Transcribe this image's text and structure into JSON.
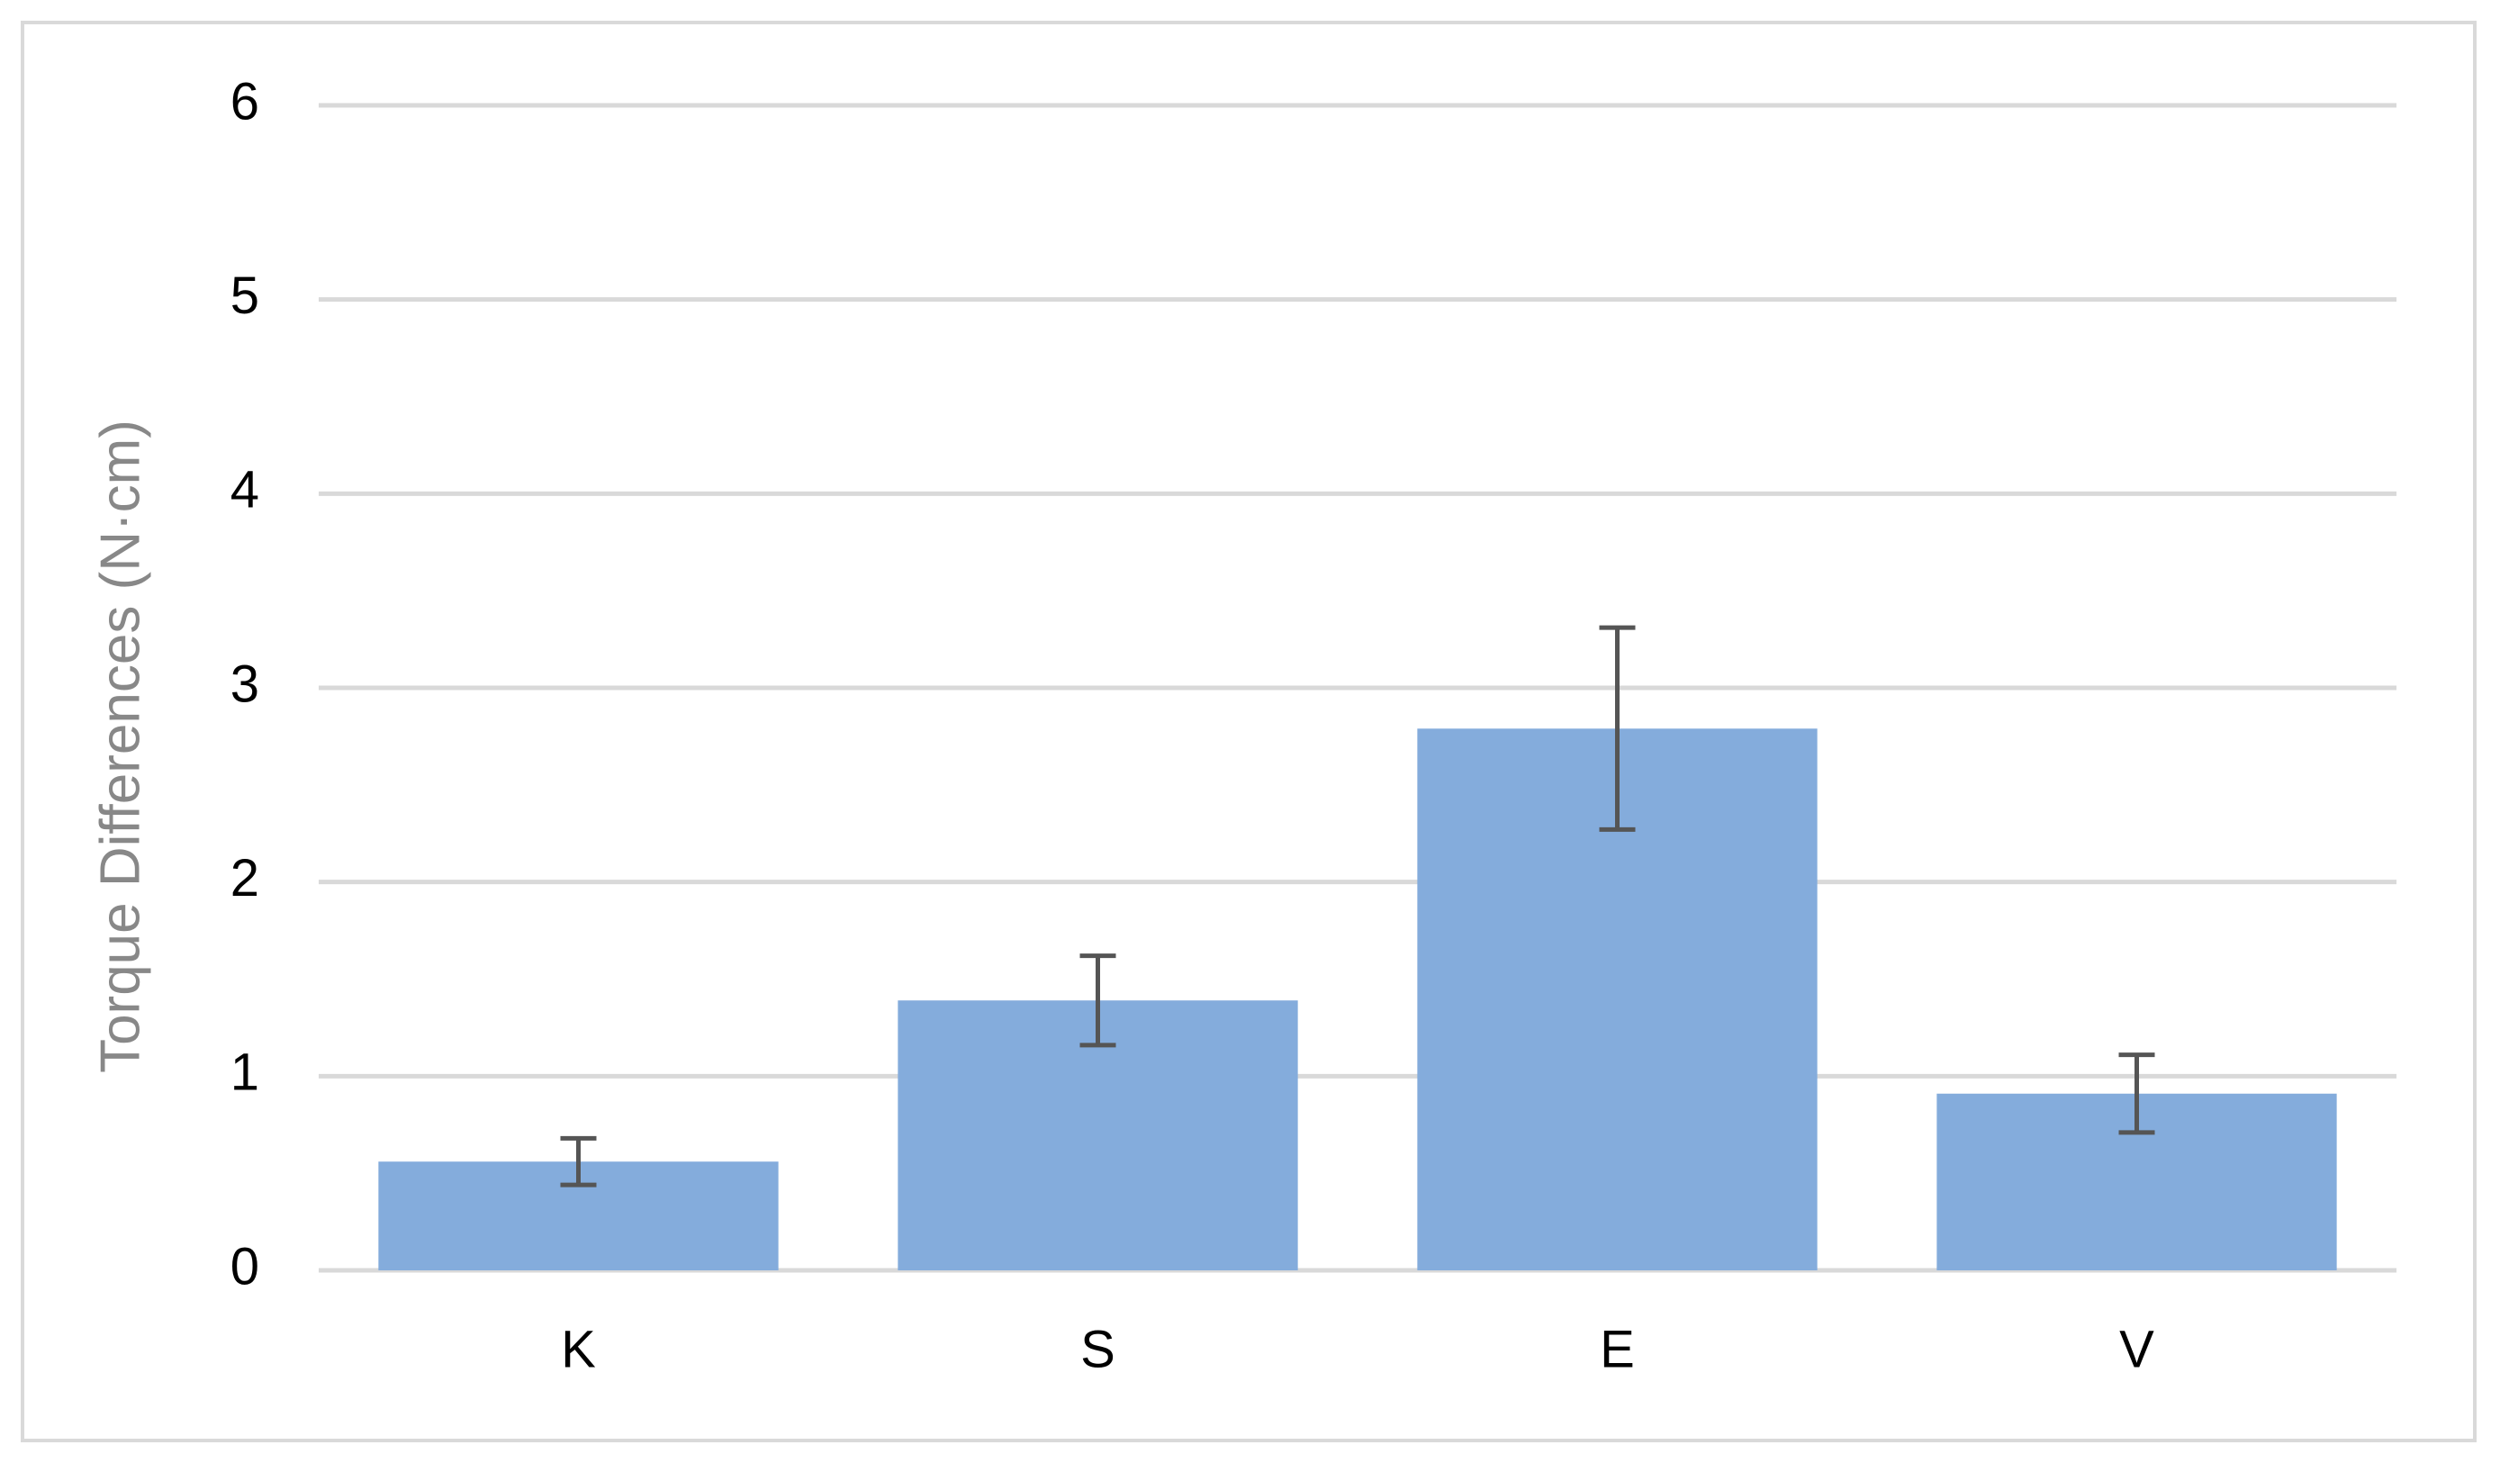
{
  "chart_data": {
    "type": "bar",
    "ylabel": "Torque Differences (N·cm)",
    "categories": [
      "K",
      "S",
      "E",
      "V"
    ],
    "values": [
      0.56,
      1.39,
      2.79,
      0.91
    ],
    "errors": [
      0.12,
      0.23,
      0.52,
      0.2
    ],
    "color": "#84acdc",
    "error_color": "#555555",
    "ylim": [
      0,
      6
    ],
    "yticks": [
      0,
      1,
      2,
      3,
      4,
      5,
      6
    ],
    "grid": true
  }
}
